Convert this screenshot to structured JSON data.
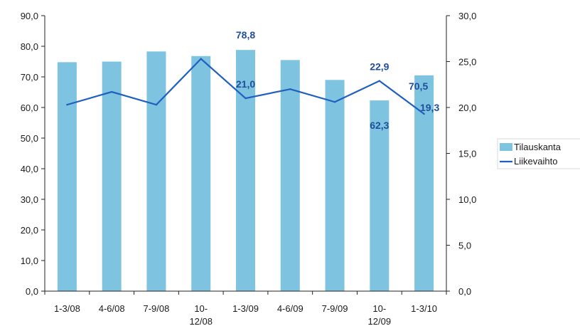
{
  "chart_data": {
    "type": "bar",
    "categories": [
      [
        "1-3/08"
      ],
      [
        "4-6/08"
      ],
      [
        "7-9/08"
      ],
      [
        "10-",
        "12/08"
      ],
      [
        "1-3/09"
      ],
      [
        "4-6/09"
      ],
      [
        "7-9/09"
      ],
      [
        "10-",
        "12/09"
      ],
      [
        "1-3/10"
      ]
    ],
    "series": [
      {
        "name": "Tilauskanta",
        "type": "bar",
        "axis": "left",
        "values": [
          74.8,
          75.0,
          78.3,
          76.8,
          78.8,
          75.5,
          69.0,
          62.3,
          70.5
        ],
        "color": "#7ec4e0"
      },
      {
        "name": "Liikevaihto",
        "type": "line",
        "axis": "right",
        "values": [
          20.3,
          21.7,
          20.3,
          25.3,
          21.0,
          22.0,
          20.6,
          22.9,
          19.3
        ],
        "color": "#1f5fbf"
      }
    ],
    "y_left": {
      "min": 0,
      "max": 90,
      "step": 10,
      "tick_labels": [
        "0,0",
        "10,0",
        "20,0",
        "30,0",
        "40,0",
        "50,0",
        "60,0",
        "70,0",
        "80,0",
        "90,0"
      ]
    },
    "y_right": {
      "min": 0,
      "max": 30,
      "step": 5,
      "tick_labels": [
        "0,0",
        "5,0",
        "10,0",
        "15,0",
        "20,0",
        "25,0",
        "30,0"
      ]
    },
    "data_labels": [
      {
        "series": 0,
        "index": 4,
        "text": "78,8"
      },
      {
        "series": 0,
        "index": 7,
        "text": "62,3"
      },
      {
        "series": 0,
        "index": 8,
        "text": "70,5"
      },
      {
        "series": 1,
        "index": 4,
        "text": "21,0"
      },
      {
        "series": 1,
        "index": 7,
        "text": "22,9"
      },
      {
        "series": 1,
        "index": 8,
        "text": "19,3"
      }
    ],
    "legend": {
      "position": "right",
      "items": [
        {
          "label": "Tilauskanta",
          "kind": "bar"
        },
        {
          "label": "Liikevaihto",
          "kind": "line"
        }
      ]
    },
    "grid": false
  }
}
